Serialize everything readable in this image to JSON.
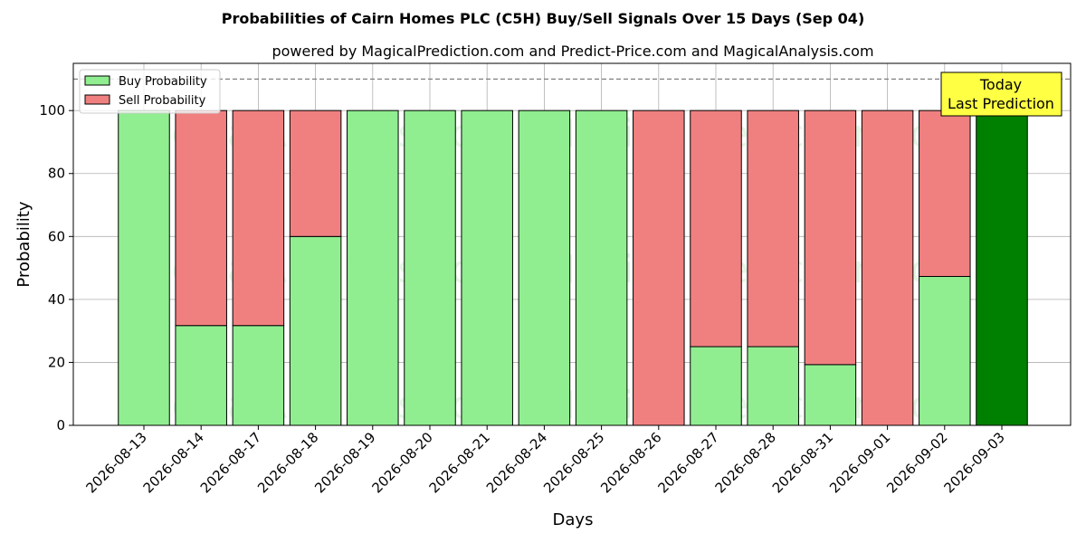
{
  "chart_data": {
    "type": "bar",
    "stacked": true,
    "title": "Probabilities of Cairn Homes PLC (C5H) Buy/Sell Signals Over 15 Days (Sep 04)",
    "subtitle": "powered by MagicalPrediction.com and Predict-Price.com and MagicalAnalysis.com",
    "xlabel": "Days",
    "ylabel": "Probability",
    "ylim": [
      0,
      115
    ],
    "yticks": [
      0,
      20,
      40,
      60,
      80,
      100
    ],
    "grid": true,
    "legend_position": "top-left",
    "categories": [
      "2026-08-13",
      "2026-08-14",
      "2026-08-17",
      "2026-08-18",
      "2026-08-19",
      "2026-08-20",
      "2026-08-21",
      "2026-08-24",
      "2026-08-25",
      "2026-08-26",
      "2026-08-27",
      "2026-08-28",
      "2026-08-31",
      "2026-09-01",
      "2026-09-02",
      "2026-09-03"
    ],
    "series": [
      {
        "name": "Buy Probability",
        "color": "#90EE90",
        "values": [
          100,
          31.7,
          31.7,
          60,
          100,
          100,
          100,
          100,
          100,
          0,
          25,
          25,
          19.3,
          0,
          47.3,
          100
        ]
      },
      {
        "name": "Sell Probability",
        "color": "#F08080",
        "values": [
          0,
          68.3,
          68.3,
          40,
          0,
          0,
          0,
          0,
          0,
          100,
          75,
          75,
          80.7,
          100,
          52.7,
          0
        ]
      }
    ],
    "highlight": {
      "category": "2026-09-03",
      "color": "#008000"
    },
    "reference_line": {
      "y": 110,
      "style": "dashed",
      "color": "#808080"
    },
    "annotation": {
      "lines": [
        "Today",
        "Last Prediction"
      ],
      "background": "#FFFF44"
    },
    "watermarks": [
      "MagicalAnalysis.com",
      "MagicalPrediction.com"
    ]
  }
}
